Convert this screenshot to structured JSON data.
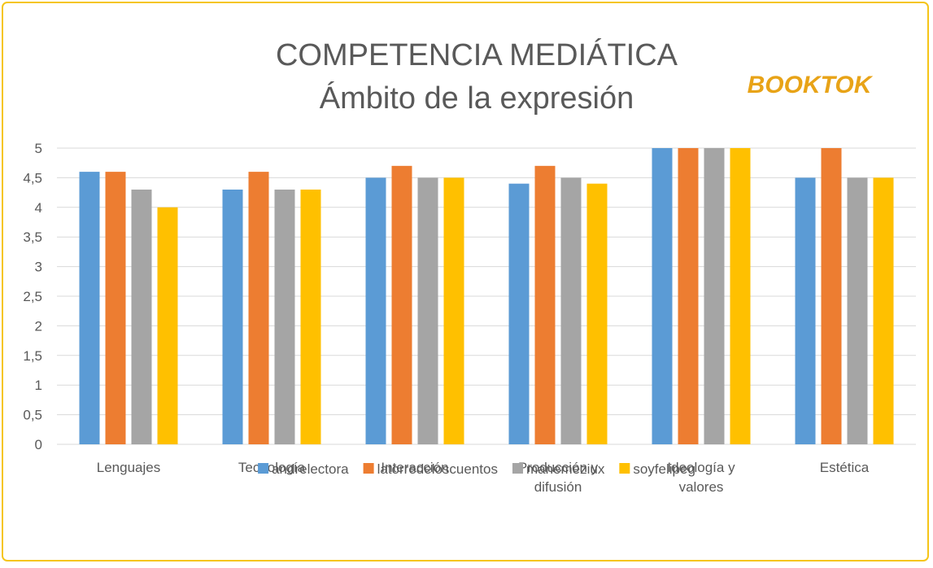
{
  "chart_data": {
    "type": "bar",
    "title": "COMPETENCIA MEDIÁTICA",
    "subtitle": "Ámbito de la expresión",
    "logo": "BOOKTOK",
    "categories": [
      "Lenguajes",
      "Tecnología",
      "Interacción",
      "Producción y difusión",
      "Ideología y valores",
      "Estética"
    ],
    "series": [
      {
        "name": "andrelectora",
        "color": "#5b9bd5",
        "values": [
          4.6,
          4.3,
          4.5,
          4.4,
          5,
          4.5
        ]
      },
      {
        "name": "latorredeloscuentos",
        "color": "#ed7d31",
        "values": [
          4.6,
          4.6,
          4.7,
          4.7,
          5,
          5
        ]
      },
      {
        "name": "manemeziux",
        "color": "#a5a5a5",
        "values": [
          4.3,
          4.3,
          4.5,
          4.5,
          5,
          4.5
        ]
      },
      {
        "name": "soyfelipeg",
        "color": "#ffc000",
        "values": [
          4.0,
          4.3,
          4.5,
          4.4,
          5,
          4.5
        ]
      }
    ],
    "ylim": [
      0,
      5
    ],
    "yticks": [
      0,
      {
        "value": 0.5,
        "label": "0,5"
      },
      1,
      {
        "value": 1.5,
        "label": "1,5"
      },
      2,
      {
        "value": 2.5,
        "label": "2,5"
      },
      3,
      {
        "value": 3.5,
        "label": "3,5"
      },
      4,
      {
        "value": 4.5,
        "label": "4,5"
      },
      5
    ],
    "grid": true,
    "legend": "bottom"
  }
}
